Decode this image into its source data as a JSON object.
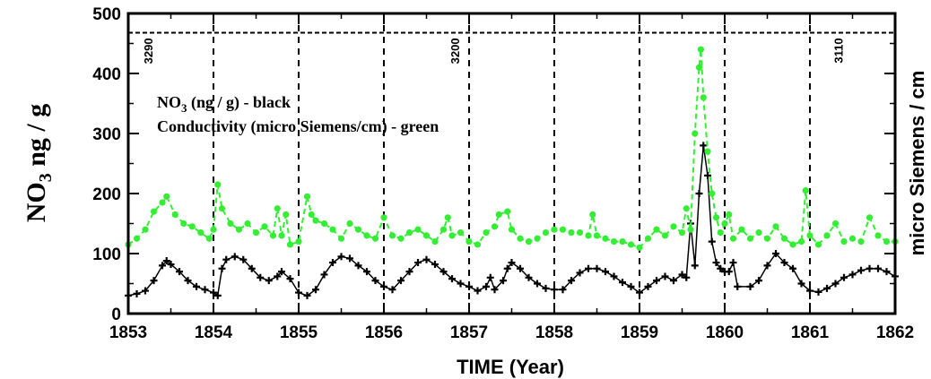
{
  "chart_data": {
    "type": "line",
    "xlabel": "TIME (Year)",
    "ylabel_left": "NO3 ng / g",
    "ylabel_right": "micro Siemens / cm",
    "xlim": [
      1853,
      1862
    ],
    "ylim": [
      0,
      500
    ],
    "xticks": [
      "1853",
      "1854",
      "1855",
      "1856",
      "1857",
      "1858",
      "1859",
      "1860",
      "1861",
      "1862"
    ],
    "yticks": [
      "0",
      "100",
      "200",
      "300",
      "400",
      "500"
    ],
    "legend": [
      "NO3 (ng / g) - black",
      "Conductivity (micro Siemens/cm) - green"
    ],
    "year_markers": [
      1854,
      1855,
      1856,
      1857,
      1858,
      1859,
      1860,
      1861
    ],
    "depth_labels": [
      {
        "text": "3290",
        "x": 1853.25
      },
      {
        "text": "3200",
        "x": 1856.85
      },
      {
        "text": "3110",
        "x": 1861.35
      }
    ],
    "reference_line_y": 468,
    "series": [
      {
        "name": "NO3 (ng / g)",
        "color": "#000000",
        "points": [
          [
            1853.0,
            30
          ],
          [
            1853.1,
            33
          ],
          [
            1853.2,
            38
          ],
          [
            1853.3,
            55
          ],
          [
            1853.4,
            80
          ],
          [
            1853.45,
            88
          ],
          [
            1853.5,
            82
          ],
          [
            1853.6,
            70
          ],
          [
            1853.7,
            55
          ],
          [
            1853.8,
            45
          ],
          [
            1853.9,
            40
          ],
          [
            1854.0,
            35
          ],
          [
            1854.05,
            30
          ],
          [
            1854.1,
            75
          ],
          [
            1854.15,
            90
          ],
          [
            1854.25,
            95
          ],
          [
            1854.35,
            90
          ],
          [
            1854.45,
            75
          ],
          [
            1854.55,
            60
          ],
          [
            1854.65,
            55
          ],
          [
            1854.75,
            62
          ],
          [
            1854.8,
            70
          ],
          [
            1854.9,
            58
          ],
          [
            1855.0,
            35
          ],
          [
            1855.1,
            30
          ],
          [
            1855.2,
            40
          ],
          [
            1855.3,
            65
          ],
          [
            1855.4,
            85
          ],
          [
            1855.5,
            95
          ],
          [
            1855.6,
            92
          ],
          [
            1855.7,
            80
          ],
          [
            1855.8,
            70
          ],
          [
            1855.9,
            55
          ],
          [
            1856.0,
            45
          ],
          [
            1856.1,
            40
          ],
          [
            1856.2,
            55
          ],
          [
            1856.3,
            70
          ],
          [
            1856.4,
            85
          ],
          [
            1856.5,
            90
          ],
          [
            1856.6,
            82
          ],
          [
            1856.7,
            70
          ],
          [
            1856.8,
            58
          ],
          [
            1856.9,
            50
          ],
          [
            1857.0,
            45
          ],
          [
            1857.1,
            38
          ],
          [
            1857.2,
            45
          ],
          [
            1857.25,
            60
          ],
          [
            1857.3,
            40
          ],
          [
            1857.4,
            55
          ],
          [
            1857.45,
            75
          ],
          [
            1857.5,
            85
          ],
          [
            1857.6,
            75
          ],
          [
            1857.7,
            60
          ],
          [
            1857.8,
            50
          ],
          [
            1857.9,
            42
          ],
          [
            1858.0,
            40
          ],
          [
            1858.1,
            40
          ],
          [
            1858.2,
            55
          ],
          [
            1858.3,
            68
          ],
          [
            1858.4,
            75
          ],
          [
            1858.5,
            75
          ],
          [
            1858.6,
            70
          ],
          [
            1858.7,
            62
          ],
          [
            1858.8,
            52
          ],
          [
            1858.9,
            45
          ],
          [
            1859.0,
            35
          ],
          [
            1859.1,
            45
          ],
          [
            1859.2,
            55
          ],
          [
            1859.3,
            62
          ],
          [
            1859.4,
            55
          ],
          [
            1859.5,
            65
          ],
          [
            1859.55,
            60
          ],
          [
            1859.6,
            150
          ],
          [
            1859.65,
            80
          ],
          [
            1859.7,
            200
          ],
          [
            1859.75,
            280
          ],
          [
            1859.8,
            230
          ],
          [
            1859.85,
            120
          ],
          [
            1859.9,
            85
          ],
          [
            1859.95,
            75
          ],
          [
            1860.0,
            70
          ],
          [
            1860.05,
            70
          ],
          [
            1860.1,
            85
          ],
          [
            1860.15,
            45
          ],
          [
            1860.3,
            45
          ],
          [
            1860.4,
            55
          ],
          [
            1860.5,
            80
          ],
          [
            1860.6,
            100
          ],
          [
            1860.7,
            85
          ],
          [
            1860.8,
            75
          ],
          [
            1860.9,
            50
          ],
          [
            1861.0,
            38
          ],
          [
            1861.1,
            36
          ],
          [
            1861.2,
            42
          ],
          [
            1861.3,
            50
          ],
          [
            1861.4,
            60
          ],
          [
            1861.5,
            65
          ],
          [
            1861.6,
            72
          ],
          [
            1861.7,
            75
          ],
          [
            1861.8,
            75
          ],
          [
            1861.9,
            70
          ],
          [
            1862.0,
            62
          ]
        ]
      },
      {
        "name": "Conductivity (micro Siemens/cm)",
        "color": "#33ee33",
        "points": [
          [
            1853.0,
            115
          ],
          [
            1853.1,
            125
          ],
          [
            1853.2,
            140
          ],
          [
            1853.3,
            170
          ],
          [
            1853.4,
            185
          ],
          [
            1853.45,
            195
          ],
          [
            1853.55,
            165
          ],
          [
            1853.65,
            150
          ],
          [
            1853.75,
            145
          ],
          [
            1853.85,
            135
          ],
          [
            1853.95,
            125
          ],
          [
            1854.0,
            140
          ],
          [
            1854.05,
            215
          ],
          [
            1854.1,
            175
          ],
          [
            1854.2,
            150
          ],
          [
            1854.3,
            140
          ],
          [
            1854.4,
            150
          ],
          [
            1854.5,
            135
          ],
          [
            1854.6,
            145
          ],
          [
            1854.7,
            130
          ],
          [
            1854.75,
            175
          ],
          [
            1854.8,
            130
          ],
          [
            1854.85,
            165
          ],
          [
            1854.9,
            115
          ],
          [
            1855.0,
            120
          ],
          [
            1855.1,
            195
          ],
          [
            1855.15,
            165
          ],
          [
            1855.2,
            155
          ],
          [
            1855.3,
            150
          ],
          [
            1855.4,
            140
          ],
          [
            1855.5,
            125
          ],
          [
            1855.6,
            150
          ],
          [
            1855.7,
            140
          ],
          [
            1855.8,
            130
          ],
          [
            1855.9,
            125
          ],
          [
            1856.0,
            160
          ],
          [
            1856.1,
            130
          ],
          [
            1856.2,
            125
          ],
          [
            1856.3,
            135
          ],
          [
            1856.4,
            140
          ],
          [
            1856.5,
            130
          ],
          [
            1856.6,
            120
          ],
          [
            1856.7,
            140
          ],
          [
            1856.75,
            160
          ],
          [
            1856.8,
            130
          ],
          [
            1856.9,
            135
          ],
          [
            1857.0,
            120
          ],
          [
            1857.1,
            115
          ],
          [
            1857.2,
            135
          ],
          [
            1857.3,
            145
          ],
          [
            1857.35,
            165
          ],
          [
            1857.45,
            170
          ],
          [
            1857.5,
            140
          ],
          [
            1857.6,
            125
          ],
          [
            1857.7,
            120
          ],
          [
            1857.8,
            125
          ],
          [
            1857.9,
            135
          ],
          [
            1858.0,
            140
          ],
          [
            1858.1,
            140
          ],
          [
            1858.2,
            135
          ],
          [
            1858.3,
            135
          ],
          [
            1858.4,
            130
          ],
          [
            1858.45,
            165
          ],
          [
            1858.5,
            130
          ],
          [
            1858.6,
            125
          ],
          [
            1858.7,
            120
          ],
          [
            1858.8,
            120
          ],
          [
            1858.9,
            115
          ],
          [
            1859.0,
            110
          ],
          [
            1859.1,
            125
          ],
          [
            1859.2,
            140
          ],
          [
            1859.3,
            130
          ],
          [
            1859.4,
            145
          ],
          [
            1859.5,
            135
          ],
          [
            1859.55,
            175
          ],
          [
            1859.6,
            140
          ],
          [
            1859.65,
            300
          ],
          [
            1859.7,
            410
          ],
          [
            1859.72,
            440
          ],
          [
            1859.75,
            360
          ],
          [
            1859.8,
            270
          ],
          [
            1859.85,
            200
          ],
          [
            1859.9,
            160
          ],
          [
            1859.95,
            135
          ],
          [
            1860.0,
            150
          ],
          [
            1860.05,
            165
          ],
          [
            1860.1,
            125
          ],
          [
            1860.2,
            140
          ],
          [
            1860.3,
            125
          ],
          [
            1860.4,
            135
          ],
          [
            1860.5,
            125
          ],
          [
            1860.6,
            145
          ],
          [
            1860.7,
            125
          ],
          [
            1860.8,
            115
          ],
          [
            1860.9,
            120
          ],
          [
            1860.95,
            205
          ],
          [
            1861.0,
            130
          ],
          [
            1861.1,
            115
          ],
          [
            1861.2,
            130
          ],
          [
            1861.3,
            150
          ],
          [
            1861.4,
            120
          ],
          [
            1861.5,
            125
          ],
          [
            1861.6,
            120
          ],
          [
            1861.7,
            160
          ],
          [
            1861.8,
            130
          ],
          [
            1861.9,
            120
          ],
          [
            1862.0,
            120
          ]
        ]
      }
    ]
  }
}
